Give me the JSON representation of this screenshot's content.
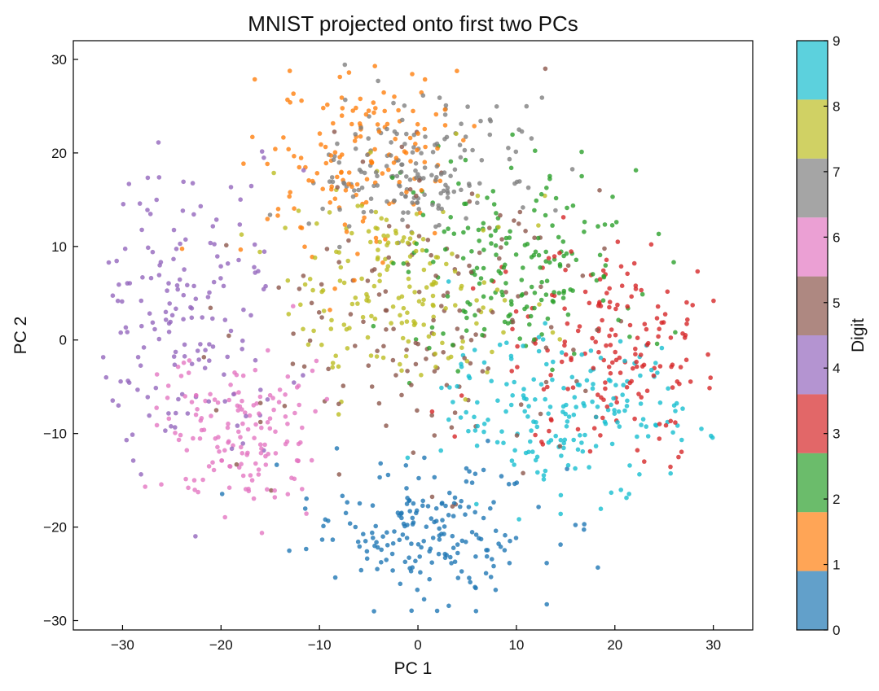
{
  "chart_data": {
    "type": "scatter",
    "title": "MNIST projected onto first two PCs",
    "xlabel": "PC 1",
    "ylabel": "PC 2",
    "xlim": [
      -35,
      34
    ],
    "ylim": [
      -31,
      32
    ],
    "xticks": [
      -30,
      -20,
      -10,
      0,
      10,
      20,
      30
    ],
    "yticks": [
      -30,
      -20,
      -10,
      0,
      10,
      20,
      30
    ],
    "xtick_labels": [
      "−30",
      "−20",
      "−10",
      "0",
      "10",
      "20",
      "30"
    ],
    "ytick_labels": [
      "−30",
      "−20",
      "−10",
      "0",
      "10",
      "20",
      "30"
    ],
    "grid": false,
    "colorbar": {
      "label": "Digit",
      "ticks": [
        "0",
        "1",
        "2",
        "3",
        "4",
        "5",
        "6",
        "7",
        "8",
        "9"
      ],
      "colors": [
        "#1f77b4",
        "#ff7f0e",
        "#2ca02c",
        "#d62728",
        "#9467bd",
        "#8c564b",
        "#e377c2",
        "#7f7f7f",
        "#bcbd22",
        "#17becf"
      ]
    },
    "series": [
      {
        "digit": 0,
        "color": "#1f77b4",
        "center": [
          1,
          -20.5
        ],
        "spread": [
          6,
          3.5
        ],
        "count": 190
      },
      {
        "digit": 1,
        "color": "#ff7f0e",
        "center": [
          -7,
          19
        ],
        "spread": [
          5,
          6
        ],
        "count": 150
      },
      {
        "digit": 2,
        "color": "#2ca02c",
        "center": [
          10,
          8
        ],
        "spread": [
          6,
          5
        ],
        "count": 185
      },
      {
        "digit": 3,
        "color": "#d62728",
        "center": [
          20,
          -1
        ],
        "spread": [
          5.5,
          6
        ],
        "count": 175
      },
      {
        "digit": 4,
        "color": "#9467bd",
        "center": [
          -24,
          3
        ],
        "spread": [
          5,
          8
        ],
        "count": 160
      },
      {
        "digit": 5,
        "color": "#8c564b",
        "center": [
          2,
          3
        ],
        "spread": [
          9,
          8
        ],
        "count": 160
      },
      {
        "digit": 6,
        "color": "#e377c2",
        "center": [
          -18,
          -10
        ],
        "spread": [
          4,
          4
        ],
        "count": 150
      },
      {
        "digit": 7,
        "color": "#7f7f7f",
        "center": [
          0,
          18
        ],
        "spread": [
          5,
          4
        ],
        "count": 170
      },
      {
        "digit": 8,
        "color": "#bcbd22",
        "center": [
          -2,
          5
        ],
        "spread": [
          6,
          6
        ],
        "count": 175
      },
      {
        "digit": 9,
        "color": "#17becf",
        "center": [
          15,
          -8
        ],
        "spread": [
          6,
          4
        ],
        "count": 190
      }
    ]
  }
}
